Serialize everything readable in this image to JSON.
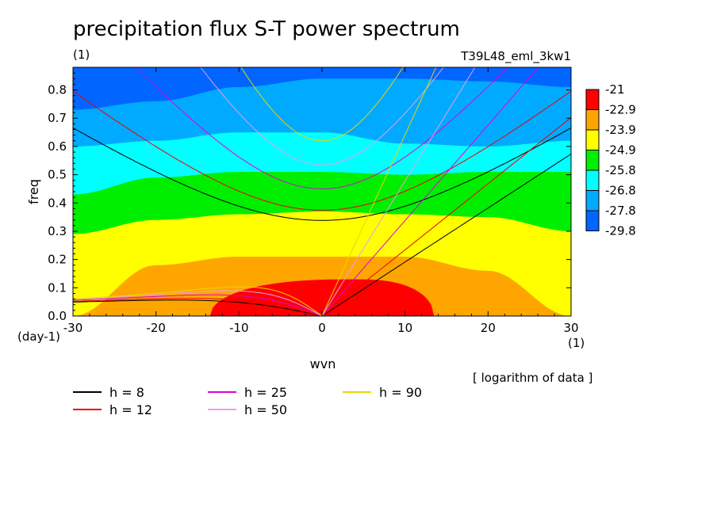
{
  "chart_data": {
    "type": "heatmap",
    "title": "precipitation flux S-T power spectrum",
    "units_label": "(1)",
    "run_label": "T39L48_eml_3kw1",
    "xlabel": "wvn",
    "ylabel": "freq",
    "x_unit": "(1)",
    "y_unit": "(day-1)",
    "note": "[ logarithm of data ]",
    "xlim": [
      -30,
      30
    ],
    "ylim": [
      0.0,
      0.88
    ],
    "xticks": [
      -30,
      -20,
      -10,
      0,
      10,
      20,
      30
    ],
    "xtick_labels": [
      "-30",
      "-20",
      "-10",
      "0",
      "10",
      "20",
      "30"
    ],
    "yticks": [
      0.0,
      0.1,
      0.2,
      0.3,
      0.4,
      0.5,
      0.6,
      0.7,
      0.8
    ],
    "ytick_labels": [
      "0.0",
      "0.1",
      "0.2",
      "0.3",
      "0.4",
      "0.5",
      "0.6",
      "0.7",
      "0.8"
    ],
    "colorbar": {
      "levels": [
        "-21",
        "-22.9",
        "-23.9",
        "-24.9",
        "-25.8",
        "-26.8",
        "-27.8",
        "-29.8"
      ],
      "colors": [
        "#ff0000",
        "#ffa500",
        "#ffff00",
        "#00ee00",
        "#00ffff",
        "#00aaff",
        "#0066ff"
      ]
    },
    "contour_bands": [
      {
        "level": "-29.8",
        "color": "#0066ff",
        "upper": [
          0.88,
          0.88,
          0.88,
          0.88,
          0.88,
          0.88,
          0.88
        ]
      },
      {
        "level": "-27.8",
        "color": "#00aaff",
        "upper": [
          0.73,
          0.76,
          0.81,
          0.84,
          0.84,
          0.83,
          0.81
        ]
      },
      {
        "level": "-26.8",
        "color": "#00ffff",
        "upper": [
          0.6,
          0.62,
          0.65,
          0.65,
          0.61,
          0.6,
          0.62
        ]
      },
      {
        "level": "-25.8",
        "color": "#00ee00",
        "upper": [
          0.43,
          0.49,
          0.51,
          0.51,
          0.5,
          0.51,
          0.51
        ]
      },
      {
        "level": "-24.9",
        "color": "#ffff00",
        "upper": [
          0.29,
          0.34,
          0.36,
          0.37,
          0.36,
          0.35,
          0.3
        ]
      },
      {
        "level": "-23.9",
        "color": "#ffa500",
        "upper": [
          0.0,
          0.18,
          0.21,
          0.21,
          0.21,
          0.16,
          0.0
        ]
      }
    ],
    "red_region": {
      "level": "-22.9",
      "x_min": -13.5,
      "x_max": 13.5,
      "peak_x": 4,
      "peak": 0.13
    },
    "dispersion_curves": [
      {
        "name": "h =  8",
        "h": 8,
        "color": "#000000"
      },
      {
        "name": "h = 12",
        "h": 12,
        "color": "#ee0000"
      },
      {
        "name": "h = 25",
        "h": 25,
        "color": "#dd00dd"
      },
      {
        "name": "h = 50",
        "h": 50,
        "color": "#e8a0e8"
      },
      {
        "name": "h = 90",
        "h": 90,
        "color": "#e6d800"
      }
    ]
  }
}
